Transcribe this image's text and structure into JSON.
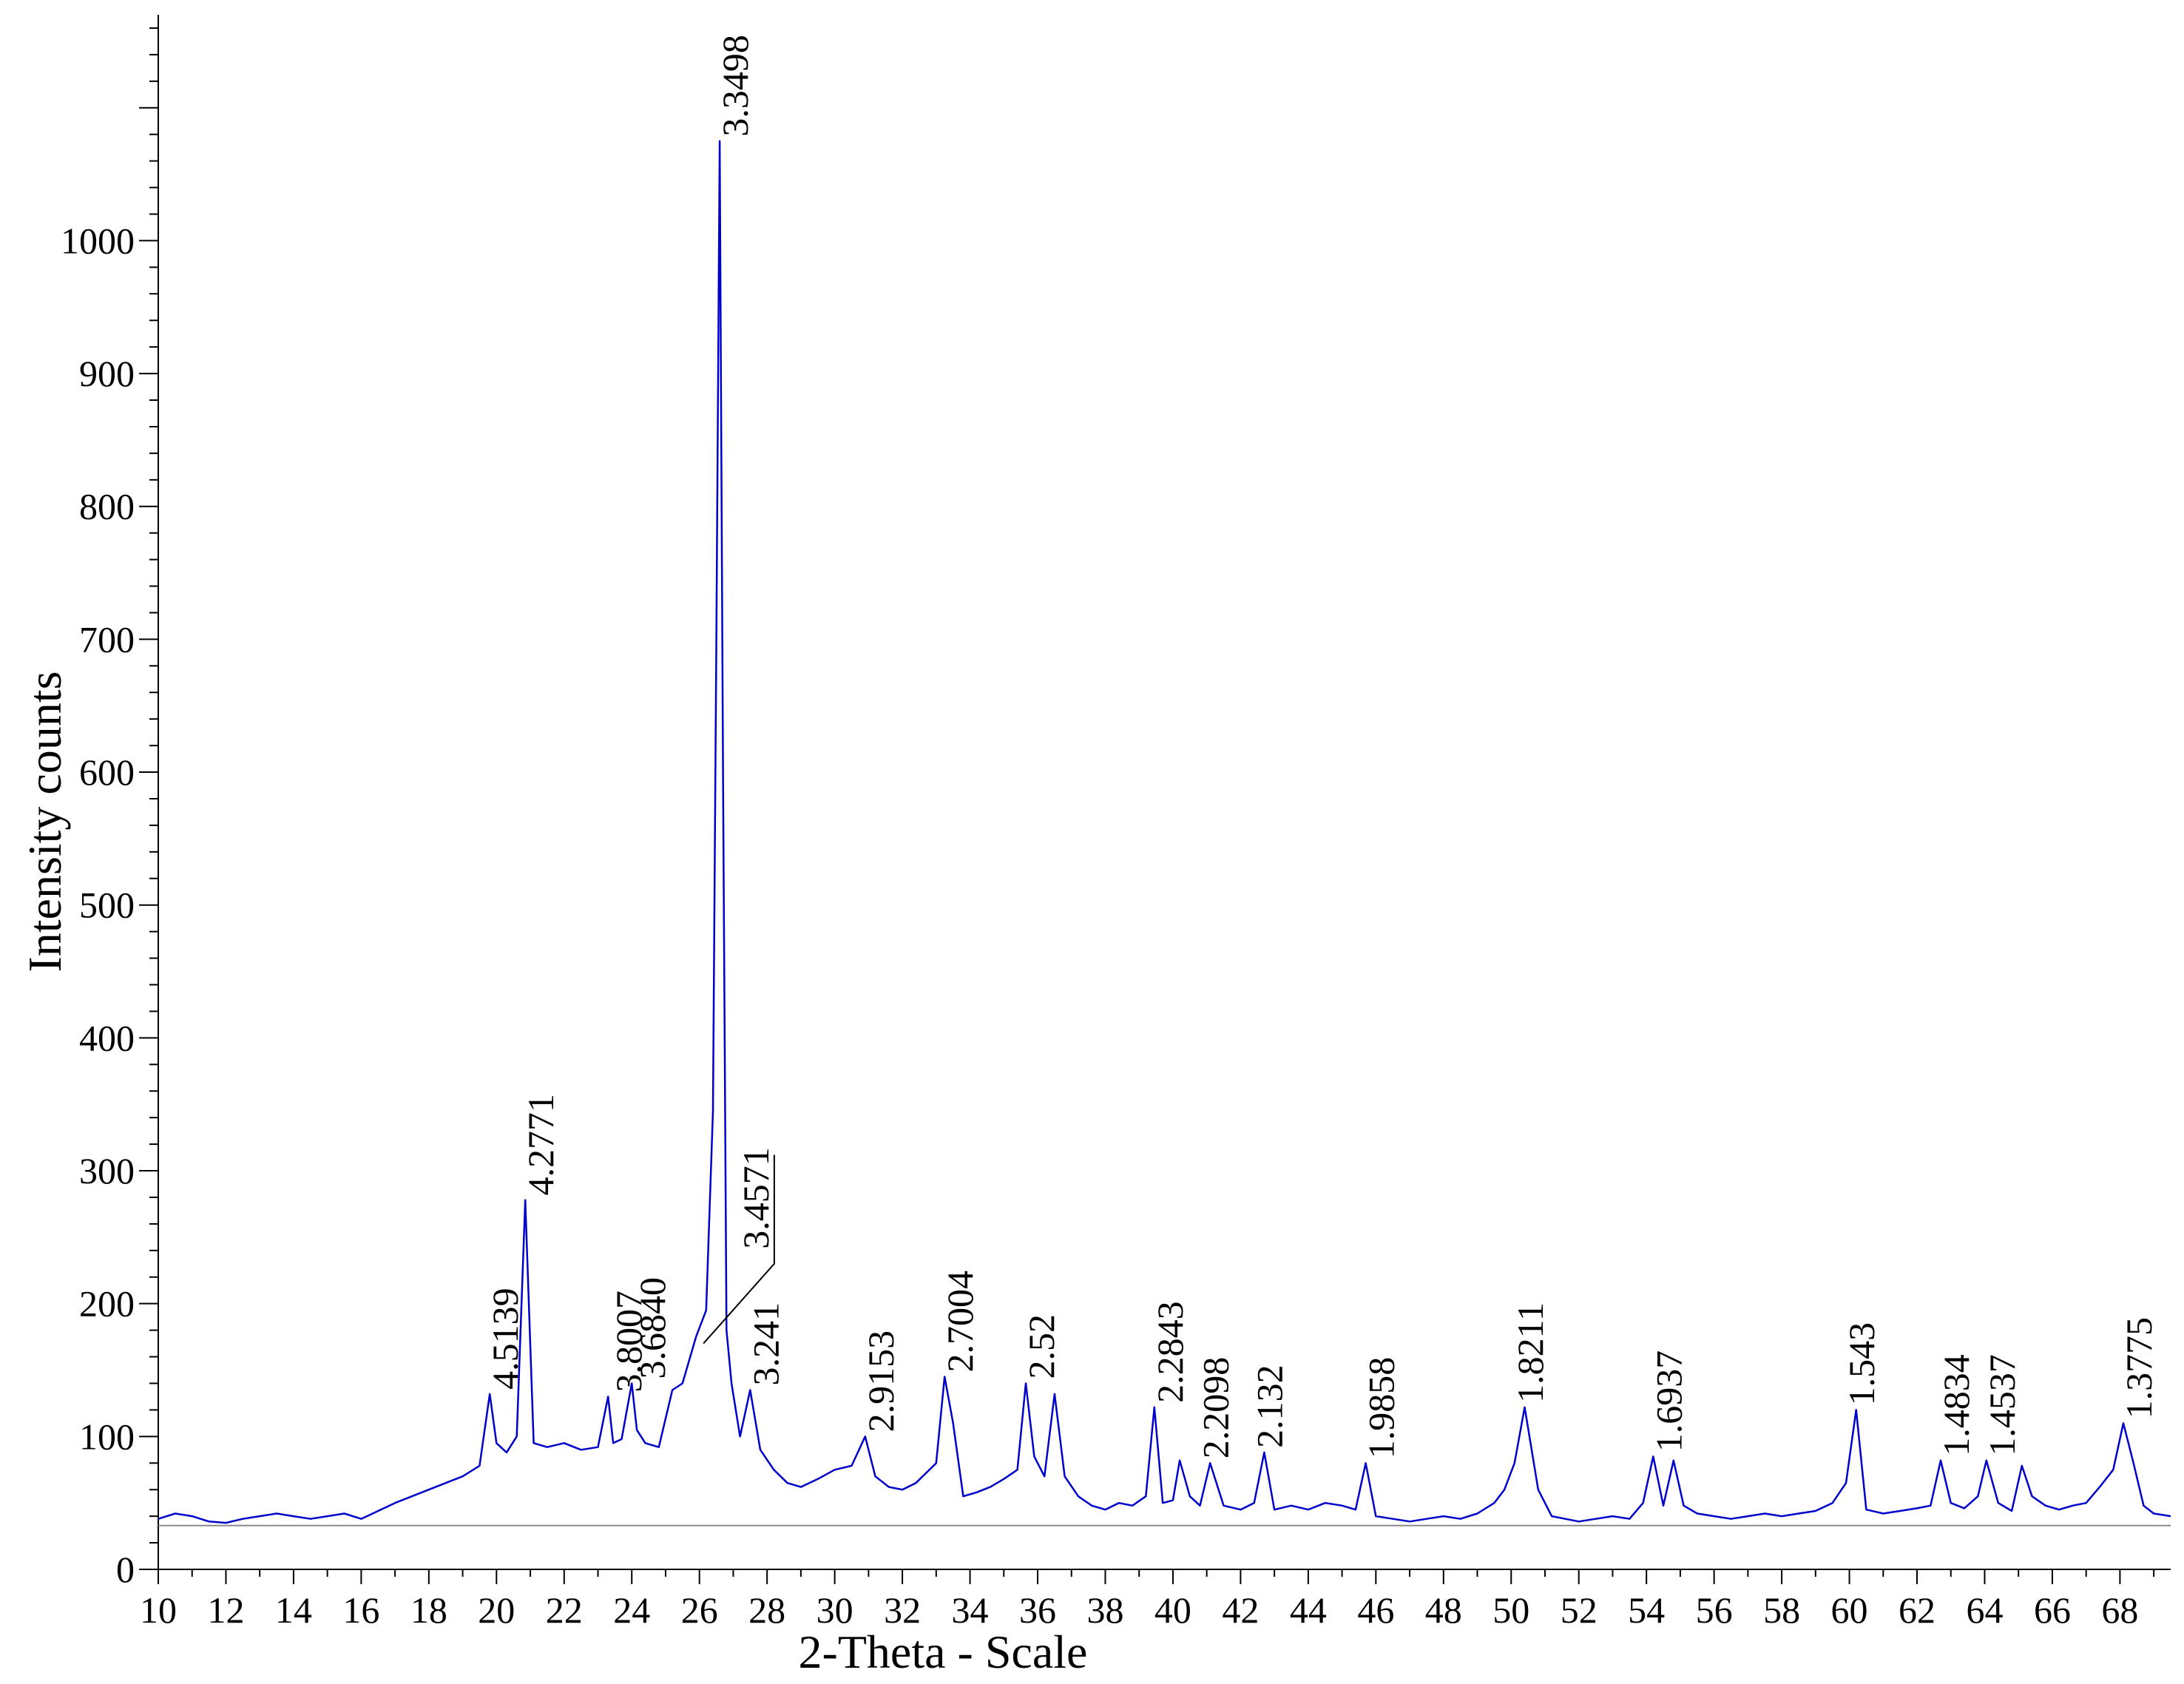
{
  "chart_data": {
    "type": "line",
    "title": "",
    "xlabel": "2-Theta - Scale",
    "ylabel": "Intensity counts",
    "xlim": [
      10,
      69.5
    ],
    "ylim": [
      0,
      1170
    ],
    "grid": false,
    "legend": "none",
    "x_ticks": [
      10,
      12,
      14,
      16,
      18,
      20,
      22,
      24,
      26,
      28,
      30,
      32,
      34,
      36,
      38,
      40,
      42,
      44,
      46,
      48,
      50,
      52,
      54,
      56,
      58,
      60,
      62,
      64,
      66,
      68
    ],
    "x_tick_labels": [
      "10",
      "12",
      "14",
      "16",
      "18",
      "20",
      "22",
      "24",
      "26",
      "28",
      "30",
      "32",
      "34",
      "36",
      "38",
      "40",
      "42",
      "44",
      "46",
      "48",
      "50",
      "52",
      "54",
      "56",
      "58",
      "60",
      "62",
      "64",
      "66",
      "68"
    ],
    "y_ticks": [
      0,
      100,
      200,
      300,
      400,
      500,
      600,
      700,
      800,
      900,
      1000
    ],
    "y_tick_labels": [
      "0",
      "100",
      "200",
      "300",
      "400",
      "500",
      "600",
      "700",
      "800",
      "900",
      "1000"
    ],
    "baseline": 33,
    "series": [
      {
        "color": "#0000cc",
        "x": [
          10.0,
          10.5,
          11.0,
          11.5,
          12.0,
          12.5,
          13.0,
          13.5,
          14.0,
          14.5,
          15.0,
          15.5,
          16.0,
          16.5,
          17.0,
          17.5,
          18.0,
          18.5,
          19.0,
          19.5,
          19.8,
          20.0,
          20.3,
          20.6,
          20.85,
          21.1,
          21.5,
          22.0,
          22.5,
          23.0,
          23.3,
          23.45,
          23.7,
          24.0,
          24.15,
          24.4,
          24.8,
          25.2,
          25.5,
          25.9,
          26.2,
          26.4,
          26.5,
          26.6,
          26.7,
          26.8,
          26.95,
          27.2,
          27.5,
          27.8,
          28.2,
          28.6,
          29.0,
          29.5,
          30.0,
          30.5,
          30.9,
          31.2,
          31.6,
          32.0,
          32.4,
          33.0,
          33.25,
          33.5,
          33.8,
          34.2,
          34.6,
          35.0,
          35.4,
          35.65,
          35.9,
          36.2,
          36.5,
          36.8,
          37.2,
          37.6,
          38.0,
          38.4,
          38.8,
          39.2,
          39.45,
          39.7,
          40.0,
          40.2,
          40.5,
          40.8,
          41.1,
          41.5,
          42.0,
          42.4,
          42.7,
          43.0,
          43.5,
          44.0,
          44.5,
          45.0,
          45.4,
          45.7,
          46.0,
          46.5,
          47.0,
          47.5,
          48.0,
          48.5,
          49.0,
          49.5,
          49.8,
          50.1,
          50.4,
          50.8,
          51.2,
          51.6,
          52.0,
          52.5,
          53.0,
          53.5,
          53.9,
          54.2,
          54.5,
          54.8,
          55.1,
          55.5,
          56.0,
          56.5,
          57.0,
          57.5,
          58.0,
          58.5,
          59.0,
          59.5,
          59.9,
          60.2,
          60.5,
          61.0,
          61.5,
          62.0,
          62.4,
          62.7,
          63.0,
          63.4,
          63.8,
          64.05,
          64.4,
          64.8,
          65.1,
          65.4,
          65.8,
          66.2,
          66.6,
          67.0,
          67.4,
          67.8,
          68.1,
          68.4,
          68.7,
          69.0,
          69.5
        ],
        "y": [
          38,
          42,
          40,
          36,
          35,
          38,
          40,
          42,
          40,
          38,
          40,
          42,
          38,
          44,
          50,
          55,
          60,
          65,
          70,
          78,
          132,
          95,
          88,
          100,
          278,
          95,
          92,
          95,
          90,
          92,
          130,
          95,
          98,
          140,
          105,
          95,
          92,
          135,
          140,
          175,
          195,
          345,
          700,
          1075,
          590,
          180,
          140,
          100,
          135,
          90,
          75,
          65,
          62,
          68,
          75,
          78,
          100,
          70,
          62,
          60,
          65,
          80,
          145,
          110,
          55,
          58,
          62,
          68,
          75,
          140,
          85,
          70,
          132,
          70,
          55,
          48,
          45,
          50,
          48,
          55,
          122,
          50,
          52,
          82,
          55,
          48,
          80,
          48,
          45,
          50,
          88,
          45,
          48,
          45,
          50,
          48,
          45,
          80,
          40,
          38,
          36,
          38,
          40,
          38,
          42,
          50,
          60,
          80,
          122,
          60,
          40,
          38,
          36,
          38,
          40,
          38,
          50,
          85,
          48,
          82,
          48,
          42,
          40,
          38,
          40,
          42,
          40,
          42,
          44,
          50,
          65,
          120,
          45,
          42,
          44,
          46,
          48,
          82,
          50,
          46,
          55,
          82,
          50,
          44,
          78,
          55,
          48,
          45,
          48,
          50,
          62,
          75,
          110,
          80,
          48,
          42,
          40
        ]
      }
    ],
    "annotations": [
      {
        "x": 19.8,
        "y": 132,
        "text": "4.5139"
      },
      {
        "x": 20.85,
        "y": 278,
        "text": "4.2771"
      },
      {
        "x": 23.45,
        "y": 130,
        "text": "3.8007"
      },
      {
        "x": 24.15,
        "y": 140,
        "text": "3.6840"
      },
      {
        "x": 26.6,
        "y": 1075,
        "text": "3.3498"
      },
      {
        "x": 25.9,
        "y": 175,
        "text": "3.4571"
      },
      {
        "x": 27.5,
        "y": 135,
        "text": "3.241"
      },
      {
        "x": 30.9,
        "y": 100,
        "text": "2.9153"
      },
      {
        "x": 33.25,
        "y": 145,
        "text": "2.7004"
      },
      {
        "x": 35.65,
        "y": 140,
        "text": "2.52"
      },
      {
        "x": 39.45,
        "y": 122,
        "text": "2.2843"
      },
      {
        "x": 40.8,
        "y": 80,
        "text": "2.2098"
      },
      {
        "x": 42.4,
        "y": 88,
        "text": "2.132"
      },
      {
        "x": 45.7,
        "y": 80,
        "text": "1.9858"
      },
      {
        "x": 50.1,
        "y": 122,
        "text": "1.8211"
      },
      {
        "x": 54.2,
        "y": 85,
        "text": "1.6937"
      },
      {
        "x": 59.9,
        "y": 120,
        "text": "1.543"
      },
      {
        "x": 62.7,
        "y": 82,
        "text": "1.4834"
      },
      {
        "x": 64.05,
        "y": 82,
        "text": "1.4537"
      },
      {
        "x": 68.1,
        "y": 110,
        "text": "1.3775"
      }
    ]
  }
}
